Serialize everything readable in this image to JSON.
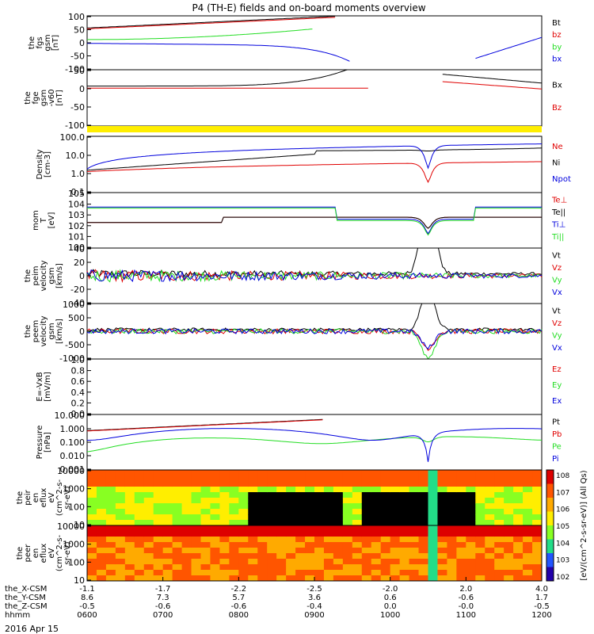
{
  "title": "P4 (TH-E) fields and on-board moments overview",
  "colors": {
    "black": "#000000",
    "red": "#e00000",
    "green": "#22dd22",
    "blue": "#0000dd",
    "yellow": "#ffee00"
  },
  "chart_data": [
    {
      "type": "line",
      "ylabel_lines": [
        "the",
        "fgs",
        "gsm",
        "[nT]"
      ],
      "ylim": [
        -100,
        100
      ],
      "yticks": [
        "100",
        "50",
        "0",
        "-50",
        "-100"
      ],
      "series": [
        {
          "name": "Bt",
          "color": "black"
        },
        {
          "name": "bz",
          "color": "red"
        },
        {
          "name": "by",
          "color": "green"
        },
        {
          "name": "bx",
          "color": "blue"
        }
      ]
    },
    {
      "type": "line",
      "ylabel_lines": [
        "the",
        "fge",
        "gsm",
        "-v60",
        "[nT]"
      ],
      "ylim": [
        -120,
        70
      ],
      "yticks": [
        "50",
        "0",
        "-50",
        "-100"
      ],
      "series": [
        {
          "name": "Bx",
          "color": "black"
        },
        {
          "name": "Bz",
          "color": "red"
        }
      ]
    },
    {
      "type": "line",
      "ylabel_lines": [
        "Density",
        "[cm-3]"
      ],
      "yscale": "log",
      "ylim": [
        0.03,
        200
      ],
      "yticks": [
        "100.0",
        "10.0",
        "1.0",
        "0.1"
      ],
      "series": [
        {
          "name": "Ne",
          "color": "red"
        },
        {
          "name": "Ni",
          "color": "black"
        },
        {
          "name": "Npot",
          "color": "blue"
        }
      ]
    },
    {
      "type": "line",
      "ylabel_lines": [
        "mom",
        "T",
        "[eV]"
      ],
      "yscale": "log",
      "ylim": [
        1,
        100000
      ],
      "yticks": [
        "10^5",
        "10^4",
        "10^3",
        "10^2",
        "10^1",
        "10^0"
      ],
      "series": [
        {
          "name": "Te⊥",
          "color": "red"
        },
        {
          "name": "Te||",
          "color": "black"
        },
        {
          "name": "Ti⊥",
          "color": "blue"
        },
        {
          "name": "Ti||",
          "color": "green"
        }
      ]
    },
    {
      "type": "line",
      "ylabel_lines": [
        "the",
        "peim",
        "velocity",
        "gsm",
        "[km/s]"
      ],
      "ylim": [
        -40,
        40
      ],
      "yticks": [
        "40",
        "20",
        "0",
        "-20",
        "-40"
      ],
      "series": [
        {
          "name": "Vt",
          "color": "black"
        },
        {
          "name": "Vz",
          "color": "red"
        },
        {
          "name": "Vy",
          "color": "green"
        },
        {
          "name": "Vx",
          "color": "blue"
        }
      ]
    },
    {
      "type": "line",
      "ylabel_lines": [
        "the",
        "peem",
        "velocity",
        "gsm",
        "[km/s]"
      ],
      "ylim": [
        -1000,
        1000
      ],
      "yticks": [
        "1000",
        "500",
        "0",
        "-500",
        "-1000"
      ],
      "series": [
        {
          "name": "Vt",
          "color": "black"
        },
        {
          "name": "Vz",
          "color": "red"
        },
        {
          "name": "Vy",
          "color": "green"
        },
        {
          "name": "Vx",
          "color": "blue"
        }
      ]
    },
    {
      "type": "line",
      "ylabel_lines": [
        "E=-VxB",
        "[mV/m]"
      ],
      "ylim": [
        0,
        1
      ],
      "yticks": [
        "1.0",
        "0.8",
        "0.6",
        "0.4",
        "0.2",
        "0.0"
      ],
      "series": [
        {
          "name": "Ez",
          "color": "red"
        },
        {
          "name": "Ey",
          "color": "green"
        },
        {
          "name": "Ex",
          "color": "blue"
        }
      ]
    },
    {
      "type": "line",
      "ylabel_lines": [
        "Pressure",
        "[nPa]"
      ],
      "yscale": "log",
      "ylim": [
        0.001,
        30
      ],
      "yticks": [
        "10.000",
        "1.000",
        "0.100",
        "0.010",
        "0.001"
      ],
      "series": [
        {
          "name": "Pt",
          "color": "black"
        },
        {
          "name": "Pb",
          "color": "red"
        },
        {
          "name": "Pe",
          "color": "green"
        },
        {
          "name": "Pi",
          "color": "blue"
        }
      ]
    },
    {
      "type": "heatmap",
      "ylabel_lines": [
        "the",
        "peir",
        "en",
        "eflux",
        "eV",
        "(cm^2-s-",
        "sr-eV)"
      ],
      "yticks": [
        "10000",
        "1000",
        "100",
        "10"
      ]
    },
    {
      "type": "heatmap",
      "ylabel_lines": [
        "the",
        "peer",
        "en",
        "eflux",
        "eV",
        "(cm^2-s-",
        "sr-eV)"
      ],
      "yticks": [
        "10000",
        "1000",
        "100",
        "10"
      ]
    }
  ],
  "colorbar": {
    "ticks": [
      "10^8",
      "10^7",
      "10^6",
      "10^5",
      "10^4",
      "10^3",
      "10^2"
    ],
    "label": "[eV/(cm^2-s-sr-eV)] (All Qs)"
  },
  "x_axis": {
    "rows": [
      {
        "label": "the_X-CSM",
        "values": [
          "-1.1",
          "-1.7",
          "-2.2",
          "-2.5",
          "-2.0",
          "2.0",
          "4.0"
        ]
      },
      {
        "label": "the_Y-CSM",
        "values": [
          "8.6",
          "7.3",
          "5.7",
          "3.6",
          "0.6",
          "-0.6",
          "1.7"
        ]
      },
      {
        "label": "the_Z-CSM",
        "values": [
          "-0.5",
          "-0.6",
          "-0.6",
          "-0.4",
          "0.0",
          "-0.0",
          "-0.5"
        ]
      },
      {
        "label": "hhmm",
        "values": [
          "0600",
          "0700",
          "0800",
          "0900",
          "1000",
          "1100",
          "1200"
        ]
      }
    ],
    "date": "2016 Apr 15"
  }
}
